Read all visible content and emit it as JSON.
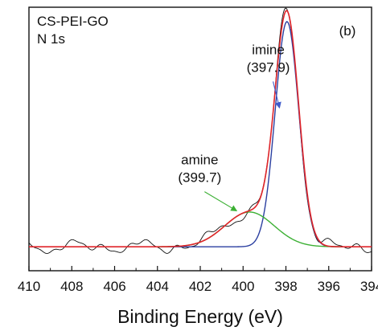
{
  "chart_data": {
    "type": "line",
    "panel_label": "(b)",
    "sample_label": "CS-PEI-GO",
    "region_label": "N 1s",
    "xlabel": "Binding Energy (eV)",
    "ylabel": "",
    "x_reversed": true,
    "xlim": [
      410,
      394
    ],
    "ylim": [
      -0.1,
      1.0
    ],
    "x_ticks": [
      "410",
      "408",
      "406",
      "404",
      "402",
      "400",
      "398",
      "396",
      "394"
    ],
    "x_tick_values": [
      410,
      408,
      406,
      404,
      402,
      400,
      398,
      396,
      394
    ],
    "y_ticks_shown": false,
    "background": 0.0,
    "components": [
      {
        "name": "imine",
        "position": "(397.9)",
        "center": 397.95,
        "height": 0.94,
        "sigma": 0.55,
        "color": "#2b3fa0"
      },
      {
        "name": "amine",
        "position": "(399.7)",
        "center": 399.7,
        "height": 0.145,
        "sigma": 1.15,
        "color": "#3cb034"
      }
    ],
    "envelope_color": "#e0252a",
    "raw_color": "#111111",
    "raw_noise_amplitude": 0.025,
    "annotations": [
      {
        "text": "imine",
        "value": "(397.9)",
        "arrow_color": "#3f5ccc",
        "arrow_from": [
          398.6,
          0.69
        ],
        "arrow_to": [
          398.3,
          0.58
        ]
      },
      {
        "text": "amine",
        "value": "(399.7)",
        "arrow_color": "#3cb034",
        "arrow_from": [
          401.8,
          0.23
        ],
        "arrow_to": [
          400.3,
          0.15
        ]
      }
    ]
  }
}
